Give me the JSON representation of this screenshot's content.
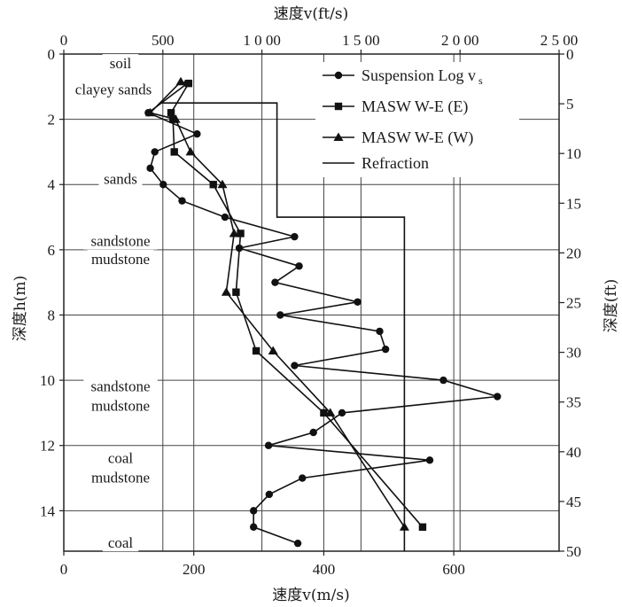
{
  "chart_data": {
    "type": "line",
    "x_axis_bottom": {
      "label": "速度v(m/s)",
      "range": [
        0,
        762
      ],
      "ticks": [
        0,
        200,
        400,
        600
      ]
    },
    "x_axis_top": {
      "label": "速度v(ft/s)",
      "range": [
        0,
        2500
      ],
      "ticks": [
        0,
        500,
        1000,
        1500,
        2000,
        2500
      ],
      "tick_labels": [
        "0",
        "500",
        "1 0 00",
        "1 5 00",
        "2 0 00",
        "2 5 00"
      ]
    },
    "y_axis_left": {
      "label": "深度h(m)",
      "range": [
        0,
        15.24
      ],
      "ticks": [
        0,
        2,
        4,
        6,
        8,
        10,
        12,
        14
      ],
      "inverted": true
    },
    "y_axis_right": {
      "label": "深度(ft)",
      "range": [
        0,
        50
      ],
      "ticks": [
        0,
        5,
        10,
        15,
        20,
        25,
        30,
        35,
        40,
        45,
        50
      ]
    },
    "grid": true,
    "legend_position": "top-right",
    "layer_labels": [
      {
        "text": "soil",
        "depth": 0.3
      },
      {
        "text": "clayey sands",
        "depth": 1.1
      },
      {
        "text": "sands",
        "depth": 3.85
      },
      {
        "text": "sandstone",
        "depth": 5.75
      },
      {
        "text": "mudstone",
        "depth": 6.3
      },
      {
        "text": "sandstone",
        "depth": 10.2
      },
      {
        "text": "mudstone",
        "depth": 10.8
      },
      {
        "text": "coal",
        "depth": 12.4
      },
      {
        "text": "mudstone",
        "depth": 13.0
      },
      {
        "text": "coal",
        "depth": 15.0
      }
    ],
    "series": [
      {
        "name": "Suspension Log v",
        "name_sub": "s",
        "marker": "circle",
        "points": [
          [
            190,
            0.9
          ],
          [
            130,
            1.8
          ],
          [
            205,
            2.45
          ],
          [
            140,
            3.0
          ],
          [
            133,
            3.5
          ],
          [
            153,
            4.0
          ],
          [
            182,
            4.5
          ],
          [
            248,
            5.0
          ],
          [
            355,
            5.6
          ],
          [
            270,
            5.95
          ],
          [
            362,
            6.5
          ],
          [
            325,
            7.0
          ],
          [
            452,
            7.6
          ],
          [
            333,
            8.0
          ],
          [
            486,
            8.5
          ],
          [
            495,
            9.05
          ],
          [
            355,
            9.55
          ],
          [
            584,
            10.0
          ],
          [
            667,
            10.5
          ],
          [
            428,
            11.0
          ],
          [
            384,
            11.6
          ],
          [
            315,
            12.0
          ],
          [
            563,
            12.45
          ],
          [
            367,
            13.0
          ],
          [
            316,
            13.5
          ],
          [
            292,
            14.0
          ],
          [
            292,
            14.5
          ],
          [
            360,
            15.0
          ]
        ]
      },
      {
        "name": "MASW W-E (E)",
        "marker": "square",
        "points": [
          [
            192,
            0.9
          ],
          [
            165,
            1.8
          ],
          [
            168,
            2.0
          ],
          [
            170,
            3.0
          ],
          [
            230,
            4.0
          ],
          [
            272,
            5.5
          ],
          [
            265,
            7.3
          ],
          [
            296,
            9.1
          ],
          [
            400,
            11.0
          ],
          [
            552,
            14.5
          ]
        ]
      },
      {
        "name": "MASW W-E (W)",
        "marker": "triangle",
        "points": [
          [
            180,
            0.85
          ],
          [
            133,
            1.8
          ],
          [
            172,
            2.0
          ],
          [
            195,
            3.0
          ],
          [
            244,
            4.0
          ],
          [
            262,
            5.5
          ],
          [
            250,
            7.3
          ],
          [
            322,
            9.1
          ],
          [
            410,
            11.0
          ],
          [
            524,
            14.5
          ]
        ]
      },
      {
        "name": "Refraction",
        "marker": "none",
        "points": [
          [
            150,
            1.5
          ],
          [
            328,
            1.5
          ],
          [
            328,
            5.0
          ],
          [
            524,
            5.0
          ],
          [
            524,
            15.24
          ]
        ]
      }
    ]
  }
}
